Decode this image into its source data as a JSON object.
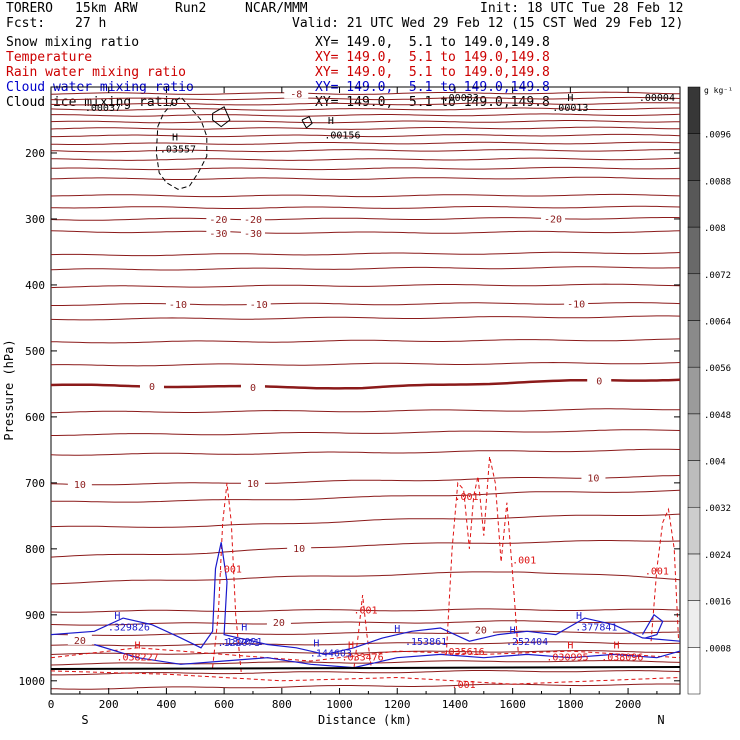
{
  "header": {
    "model": "TORERO",
    "resolution": "15km ARW",
    "run": "Run2",
    "org": "NCAR/MMM",
    "init": "Init: 18 UTC Tue 28 Feb 12",
    "fcst_label": "Fcst:",
    "fcst_value": "27 h",
    "valid": "Valid: 21 UTC Wed 29 Feb 12 (15 CST Wed 29 Feb 12)"
  },
  "fields": [
    {
      "name": "Snow mixing ratio",
      "color": "#000000",
      "xy": "XY= 149.0,  5.1 to 149.0,149.8"
    },
    {
      "name": "Temperature",
      "color": "#cc0000",
      "xy": "XY= 149.0,  5.1 to 149.0,149.8"
    },
    {
      "name": "Rain water mixing ratio",
      "color": "#cc0000",
      "xy": "XY= 149.0,  5.1 to 149.0,149.8"
    },
    {
      "name": "Cloud water mixing ratio",
      "color": "#0000cc",
      "xy": "XY= 149.0,  5.1 to 149.0,149.8"
    },
    {
      "name": "Cloud ice mixing ratio",
      "color": "#000000",
      "xy": "XY= 149.0,  5.1 to 149.0,149.8"
    }
  ],
  "chart_data": {
    "type": "contour cross-section",
    "ylabel": "Pressure (hPa)",
    "xlabel": "Distance (km)",
    "xlim": [
      0,
      2180
    ],
    "ylim": [
      1020,
      100
    ],
    "x_ticks": [
      "0",
      "200",
      "400",
      "600",
      "800",
      "1000",
      "1200",
      "1400",
      "1600",
      "1800",
      "2000"
    ],
    "y_ticks": [
      "200",
      "300",
      "400",
      "500",
      "600",
      "700",
      "800",
      "900",
      "1000"
    ],
    "endpoints": {
      "left": "S",
      "right": "N"
    },
    "colorbar": {
      "unit": "g kg⁻¹",
      "labels": [
        ".0096",
        ".0088",
        ".008",
        ".0072",
        ".0064",
        ".0056",
        ".0048",
        ".004",
        ".0032",
        ".0024",
        ".0016",
        ".0008"
      ],
      "range": [
        0,
        0.0104
      ]
    },
    "temperature_contours": [
      {
        "p": [
          1012,
          1010,
          1008,
          1006,
          1006
        ]
      },
      {
        "p": [
          990,
          988,
          987,
          985,
          986
        ]
      },
      {
        "p": [
          975,
          973,
          972,
          970,
          971
        ]
      },
      {
        "p": [
          960,
          958,
          957,
          955,
          956
        ]
      },
      {
        "p": [
          947,
          945,
          944,
          942,
          943
        ]
      },
      {
        "p": [
          931,
          929,
          928,
          926,
          927
        ]
      },
      {
        "p": [
          915,
          913,
          912,
          910,
          911
        ]
      },
      {
        "p": [
          895,
          894,
          893,
          892,
          893
        ]
      },
      {
        "p": [
          852,
          846,
          840,
          834,
          846
        ]
      },
      {
        "p": [
          812,
          806,
          794,
          790,
          787
        ],
        "label": "10",
        "label_x": [
          860
        ]
      },
      {
        "p": [
          767,
          766,
          757,
          752,
          747
        ]
      },
      {
        "p": [
          729,
          727,
          722,
          715,
          712
        ]
      },
      {
        "p": [
          702,
          701,
          697,
          693,
          690
        ],
        "label": "10",
        "label_x": [
          100,
          700,
          1880
        ]
      },
      {
        "p": [
          657,
          656,
          654,
          652,
          650
        ]
      },
      {
        "p": [
          627,
          626,
          624,
          622,
          620
        ]
      },
      {
        "p": [
          593,
          592,
          591,
          590,
          588
        ]
      },
      {
        "p": [
          552,
          554,
          556,
          547,
          543
        ],
        "label": "0",
        "label_x": [
          350,
          700,
          1900
        ],
        "bold": true
      },
      {
        "p": [
          522,
          521,
          520,
          519,
          518
        ]
      },
      {
        "p": [
          487,
          486,
          485,
          484,
          483
        ]
      },
      {
        "p": [
          452,
          451,
          450,
          449,
          448
        ]
      },
      {
        "p": [
          430,
          429,
          429,
          428,
          428
        ],
        "label": "-10",
        "label_x": [
          440,
          720,
          1820
        ]
      },
      {
        "p": [
          403,
          402,
          401,
          400,
          400
        ]
      },
      {
        "p": [
          377,
          376,
          375,
          374,
          373
        ]
      },
      {
        "p": [
          355,
          354,
          353,
          352,
          351
        ]
      },
      {
        "p": [
          319,
          320,
          321,
          320,
          319
        ]
      },
      {
        "p": [
          301,
          300,
          300,
          299,
          299
        ],
        "label": "-20",
        "label_x": [
          580,
          700,
          1740
        ]
      },
      {
        "p": [
          282,
          283,
          283,
          282,
          282
        ]
      },
      {
        "p": [
          264,
          265,
          265,
          264,
          264
        ]
      },
      {
        "p": [
          239,
          239,
          239,
          238,
          238
        ]
      },
      {
        "p": [
          224,
          224,
          224,
          223,
          223
        ]
      },
      {
        "p": [
          210,
          210,
          210,
          209,
          209
        ]
      },
      {
        "p": [
          197,
          197,
          196,
          196,
          196
        ]
      },
      {
        "p": [
          186,
          186,
          185,
          185,
          185
        ]
      },
      {
        "p": [
          174,
          174,
          174,
          173,
          173
        ]
      },
      {
        "p": [
          163,
          163,
          163,
          162,
          162
        ]
      },
      {
        "p": [
          153,
          153,
          153,
          152,
          152
        ]
      },
      {
        "p": [
          143,
          143,
          143,
          142,
          142
        ]
      },
      {
        "p": [
          134,
          134,
          134,
          133,
          133
        ]
      },
      {
        "p": [
          126,
          126,
          126,
          125,
          125
        ]
      },
      {
        "p": [
          118,
          118,
          118,
          117,
          117
        ]
      },
      {
        "p": [
          110,
          110,
          110,
          109,
          109
        ]
      }
    ],
    "temperature_labels": [
      {
        "text": "-30",
        "x": 580,
        "p": 321
      },
      {
        "text": "-30",
        "x": 700,
        "p": 321
      },
      {
        "text": "20",
        "x": 790,
        "p": 911
      },
      {
        "text": "20",
        "x": 1490,
        "p": 922
      },
      {
        "text": "20",
        "x": 100,
        "p": 938
      },
      {
        "text": "-8",
        "x": 850,
        "p": 110
      }
    ],
    "rain_labels": [
      {
        "text": ".001",
        "x": 620,
        "p": 830
      },
      {
        "text": ".001",
        "x": 1090,
        "p": 892
      },
      {
        "text": ".001",
        "x": 1440,
        "p": 720
      },
      {
        "text": ".001",
        "x": 1640,
        "p": 816
      },
      {
        "text": ".001",
        "x": 2100,
        "p": 833
      },
      {
        "text": ".001",
        "x": 1430,
        "p": 1005
      },
      {
        "text": ".038227",
        "x": 300,
        "p": 963
      },
      {
        "text": ".033476",
        "x": 1080,
        "p": 963
      },
      {
        "text": ".035616",
        "x": 1430,
        "p": 955
      },
      {
        "text": ".030995",
        "x": 1790,
        "p": 963
      },
      {
        "text": ".038096",
        "x": 1980,
        "p": 963
      }
    ],
    "rain_max_markers": [
      {
        "x": 300,
        "p": 945
      },
      {
        "x": 1040,
        "p": 945
      },
      {
        "x": 1800,
        "p": 945
      },
      {
        "x": 1960,
        "p": 945
      }
    ],
    "cloud_water_labels": [
      {
        "text": ".329826",
        "x": 270,
        "p": 918
      },
      {
        "text": ".132021",
        "x": 660,
        "p": 940
      },
      {
        "text": ".122071",
        "x": 650,
        "p": 941
      },
      {
        "text": ".144603",
        "x": 970,
        "p": 957
      },
      {
        "text": ".153861",
        "x": 1300,
        "p": 940
      },
      {
        "text": ".252404",
        "x": 1650,
        "p": 940
      },
      {
        "text": ".377841",
        "x": 1890,
        "p": 918
      }
    ],
    "cloud_water_max_markers": [
      {
        "x": 230,
        "p": 900
      },
      {
        "x": 670,
        "p": 918
      },
      {
        "x": 920,
        "p": 942
      },
      {
        "x": 1200,
        "p": 920
      },
      {
        "x": 1600,
        "p": 922
      },
      {
        "x": 1830,
        "p": 900
      }
    ],
    "cloud_ice_labels": [
      {
        "text": ".03557",
        "x": 440,
        "p": 193
      },
      {
        "text": ".00156",
        "x": 1010,
        "p": 172
      },
      {
        "text": ".00037",
        "x": 180,
        "p": 130
      },
      {
        "text": ".00033",
        "x": 1420,
        "p": 115
      },
      {
        "text": ".00013",
        "x": 1800,
        "p": 130
      },
      {
        "text": ".00004",
        "x": 2100,
        "p": 115
      }
    ],
    "cloud_ice_max_markers": [
      {
        "x": 430,
        "p": 175
      },
      {
        "x": 970,
        "p": 150
      },
      {
        "x": 1800,
        "p": 115
      }
    ]
  }
}
